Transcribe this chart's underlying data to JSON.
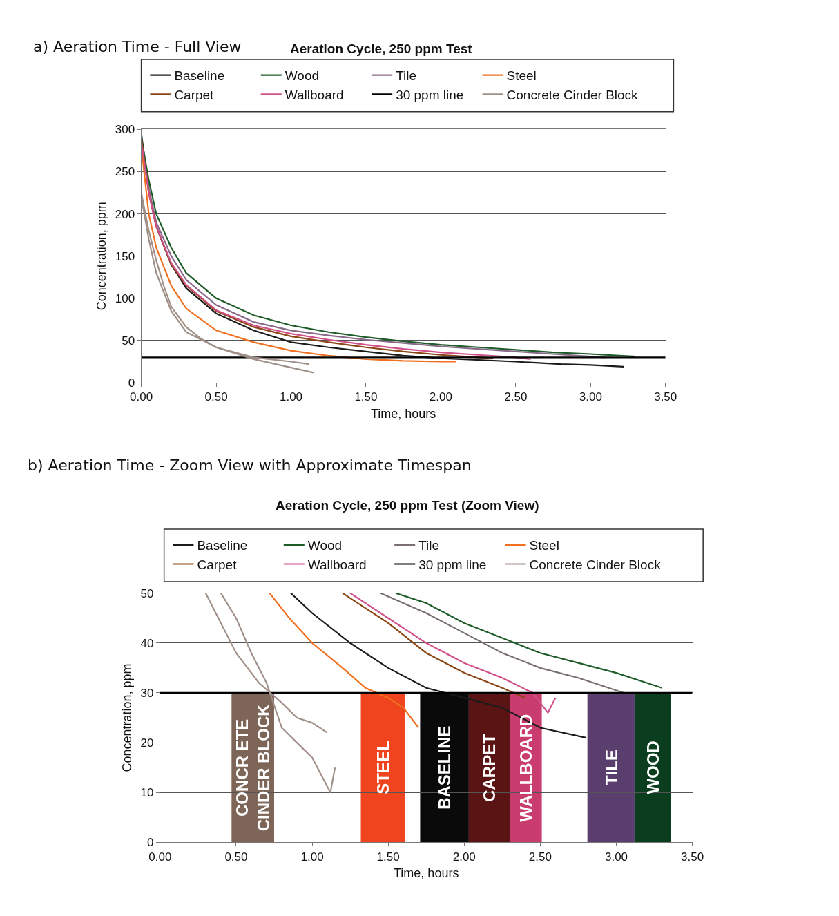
{
  "chart_data": [
    {
      "type": "line",
      "title": "Aeration Cycle, 250 ppm Test",
      "xlabel": "Time, hours",
      "ylabel": "Concentration, ppm",
      "annotations": [
        "a) Aeration Time - Full View"
      ],
      "xlim": [
        0,
        3.5
      ],
      "ylim": [
        0,
        300
      ],
      "xticks": [
        {
          "value": 0,
          "label": "0.00"
        },
        {
          "value": 0.5,
          "label": "0.50"
        },
        {
          "value": 1,
          "label": "1.00"
        },
        {
          "value": 1.5,
          "label": "1.50"
        },
        {
          "value": 2,
          "label": "2.00"
        },
        {
          "value": 2.5,
          "label": "2.50"
        },
        {
          "value": 3,
          "label": "3.00"
        },
        {
          "value": 3.5,
          "label": "3.50"
        }
      ],
      "yticks": [
        0,
        50,
        100,
        150,
        200,
        250,
        300
      ],
      "grid": "y",
      "legend": "top",
      "series": [
        {
          "name": "Baseline",
          "color": "#1a1a1a",
          "x": [
            0,
            0.05,
            0.1,
            0.2,
            0.3,
            0.5,
            0.75,
            1.0,
            1.25,
            1.5,
            1.75,
            2.0,
            2.5,
            2.8,
            3.0,
            3.22
          ],
          "values": [
            295,
            230,
            185,
            140,
            112,
            82,
            62,
            48,
            42,
            37,
            32,
            29,
            25,
            22,
            21,
            19
          ]
        },
        {
          "name": "Wood",
          "color": "#1e5c2a",
          "x": [
            0,
            0.05,
            0.1,
            0.2,
            0.3,
            0.5,
            0.75,
            1.0,
            1.25,
            1.5,
            1.75,
            2.0,
            2.25,
            2.5,
            2.75,
            3.0,
            3.3
          ],
          "values": [
            290,
            240,
            200,
            160,
            130,
            100,
            80,
            68,
            60,
            54,
            49,
            45,
            42,
            39,
            36,
            34,
            31
          ]
        },
        {
          "name": "Tile",
          "color": "#8a6a8a",
          "x": [
            0,
            0.05,
            0.1,
            0.2,
            0.3,
            0.5,
            0.75,
            1.0,
            1.25,
            1.5,
            1.75,
            2.0,
            2.5,
            2.75,
            3.0,
            3.1
          ],
          "values": [
            285,
            230,
            190,
            150,
            122,
            92,
            72,
            62,
            56,
            51,
            47,
            43,
            37,
            34,
            31,
            30
          ]
        },
        {
          "name": "Steel",
          "color": "#f07020",
          "x": [
            0,
            0.05,
            0.1,
            0.2,
            0.3,
            0.5,
            0.75,
            1.0,
            1.25,
            1.5,
            1.75,
            2.0,
            2.1
          ],
          "values": [
            280,
            200,
            160,
            115,
            88,
            62,
            48,
            38,
            32,
            28,
            26,
            25,
            25
          ]
        },
        {
          "name": "Carpet",
          "color": "#8b4513",
          "x": [
            0,
            0.05,
            0.1,
            0.2,
            0.3,
            0.5,
            0.75,
            1.0,
            1.25,
            1.5,
            1.75,
            2.0,
            2.25,
            2.35
          ],
          "values": [
            290,
            225,
            185,
            140,
            115,
            85,
            66,
            55,
            48,
            42,
            37,
            33,
            30,
            29
          ]
        },
        {
          "name": "Wallboard",
          "color": "#d0508a",
          "x": [
            0,
            0.05,
            0.1,
            0.2,
            0.3,
            0.5,
            0.75,
            1.0,
            1.25,
            1.5,
            1.75,
            2.0,
            2.25,
            2.5,
            2.6
          ],
          "values": [
            285,
            225,
            185,
            142,
            116,
            86,
            68,
            58,
            51,
            45,
            40,
            36,
            33,
            30,
            28
          ]
        },
        {
          "name": "30 ppm line",
          "color": "#000000",
          "x": [
            0,
            3.5
          ],
          "values": [
            30,
            30
          ]
        },
        {
          "name": "Concrete Cinder Block",
          "color": "#a09088",
          "x": [
            0,
            0.05,
            0.1,
            0.15,
            0.2,
            0.3,
            0.4,
            0.5,
            0.75,
            1.0,
            1.12
          ],
          "values": [
            225,
            180,
            145,
            115,
            90,
            66,
            52,
            42,
            30,
            25,
            22
          ]
        },
        {
          "color": "#a09088",
          "x": [
            0,
            0.05,
            0.1,
            0.2,
            0.3,
            0.5,
            0.75,
            1.0,
            1.15
          ],
          "values": [
            220,
            170,
            130,
            85,
            60,
            42,
            28,
            18,
            12
          ]
        }
      ]
    },
    {
      "type": "line",
      "title": "Aeration Cycle, 250 ppm Test (Zoom View)",
      "xlabel": "Time, hours",
      "ylabel": "Concentration, ppm",
      "annotations": [
        "b) Aeration Time - Zoom View with Approximate Timespan"
      ],
      "xlim": [
        0,
        3.5
      ],
      "ylim": [
        0,
        50
      ],
      "xticks": [
        {
          "value": 0,
          "label": "0.00"
        },
        {
          "value": 0.5,
          "label": "0.50"
        },
        {
          "value": 1,
          "label": "1.00"
        },
        {
          "value": 1.5,
          "label": "1.50"
        },
        {
          "value": 2,
          "label": "2.00"
        },
        {
          "value": 2.5,
          "label": "2.50"
        },
        {
          "value": 3,
          "label": "3.00"
        },
        {
          "value": 3.5,
          "label": "3.50"
        }
      ],
      "yticks": [
        0,
        10,
        20,
        30,
        40,
        50
      ],
      "grid": "y",
      "legend": "top",
      "bands": [
        {
          "axis": "x",
          "from": 0.47,
          "to": 0.75,
          "label": "CONCR ETE\nCINDER BLOCK",
          "color": "#7d6558"
        },
        {
          "axis": "x",
          "from": 1.32,
          "to": 1.61,
          "label": "STEEL",
          "color": "#f0441e"
        },
        {
          "axis": "x",
          "from": 1.71,
          "to": 2.03,
          "label": "BASELINE",
          "color": "#0a0a0a"
        },
        {
          "axis": "x",
          "from": 2.03,
          "to": 2.3,
          "label": "CARPET",
          "color": "#5a1414"
        },
        {
          "axis": "x",
          "from": 2.3,
          "to": 2.51,
          "label": "WALLBOARD",
          "color": "#c83c6e"
        },
        {
          "axis": "x",
          "from": 2.81,
          "to": 3.12,
          "label": "TILE",
          "color": "#5a3f6e"
        },
        {
          "axis": "x",
          "from": 3.12,
          "to": 3.36,
          "label": "WOOD",
          "color": "#0b3d1f"
        }
      ],
      "series": [
        {
          "name": "Baseline",
          "color": "#1a1a1a",
          "x": [
            0.86,
            1.0,
            1.25,
            1.5,
            1.75,
            2.0,
            2.25,
            2.5,
            2.8
          ],
          "values": [
            50,
            46,
            40,
            35,
            31,
            29,
            27,
            23,
            21
          ]
        },
        {
          "name": "Wood",
          "color": "#1e5c2a",
          "x": [
            1.55,
            1.75,
            2.0,
            2.25,
            2.5,
            2.75,
            3.0,
            3.2,
            3.3
          ],
          "values": [
            50,
            48,
            44,
            41,
            38,
            36,
            34,
            32,
            31
          ]
        },
        {
          "name": "Tile",
          "color": "#7a7070",
          "x": [
            1.45,
            1.75,
            2.0,
            2.25,
            2.5,
            2.75,
            2.95,
            3.05
          ],
          "values": [
            50,
            46,
            42,
            38,
            35,
            33,
            31,
            30
          ]
        },
        {
          "name": "Steel",
          "color": "#f07020",
          "x": [
            0.72,
            0.85,
            1.0,
            1.2,
            1.35,
            1.5,
            1.6,
            1.7
          ],
          "values": [
            50,
            45,
            40,
            35,
            31,
            29,
            27,
            23
          ]
        },
        {
          "name": "Carpet",
          "color": "#8b4513",
          "x": [
            1.2,
            1.5,
            1.75,
            2.0,
            2.25,
            2.4
          ],
          "values": [
            50,
            44,
            38,
            34,
            31,
            29
          ]
        },
        {
          "name": "Wallboard",
          "color": "#d0508a",
          "x": [
            1.25,
            1.5,
            1.75,
            2.0,
            2.25,
            2.45,
            2.55,
            2.6
          ],
          "values": [
            50,
            45,
            40,
            36,
            33,
            30,
            26,
            29
          ]
        },
        {
          "name": "30 ppm line",
          "color": "#000000",
          "x": [
            0,
            3.5
          ],
          "values": [
            30,
            30
          ]
        },
        {
          "name": "Concrete Cinder Block",
          "color": "#a09088",
          "x": [
            0.3,
            0.4,
            0.5,
            0.65,
            0.8,
            0.9,
            1.0,
            1.1
          ],
          "values": [
            50,
            44,
            38,
            32,
            28,
            25,
            24,
            22
          ]
        },
        {
          "color": "#a09088",
          "x": [
            0.4,
            0.5,
            0.6,
            0.7,
            0.8,
            0.9,
            1.0,
            1.12,
            1.15
          ],
          "values": [
            50,
            45,
            38,
            32,
            23,
            20,
            17,
            10,
            15
          ]
        }
      ]
    }
  ]
}
